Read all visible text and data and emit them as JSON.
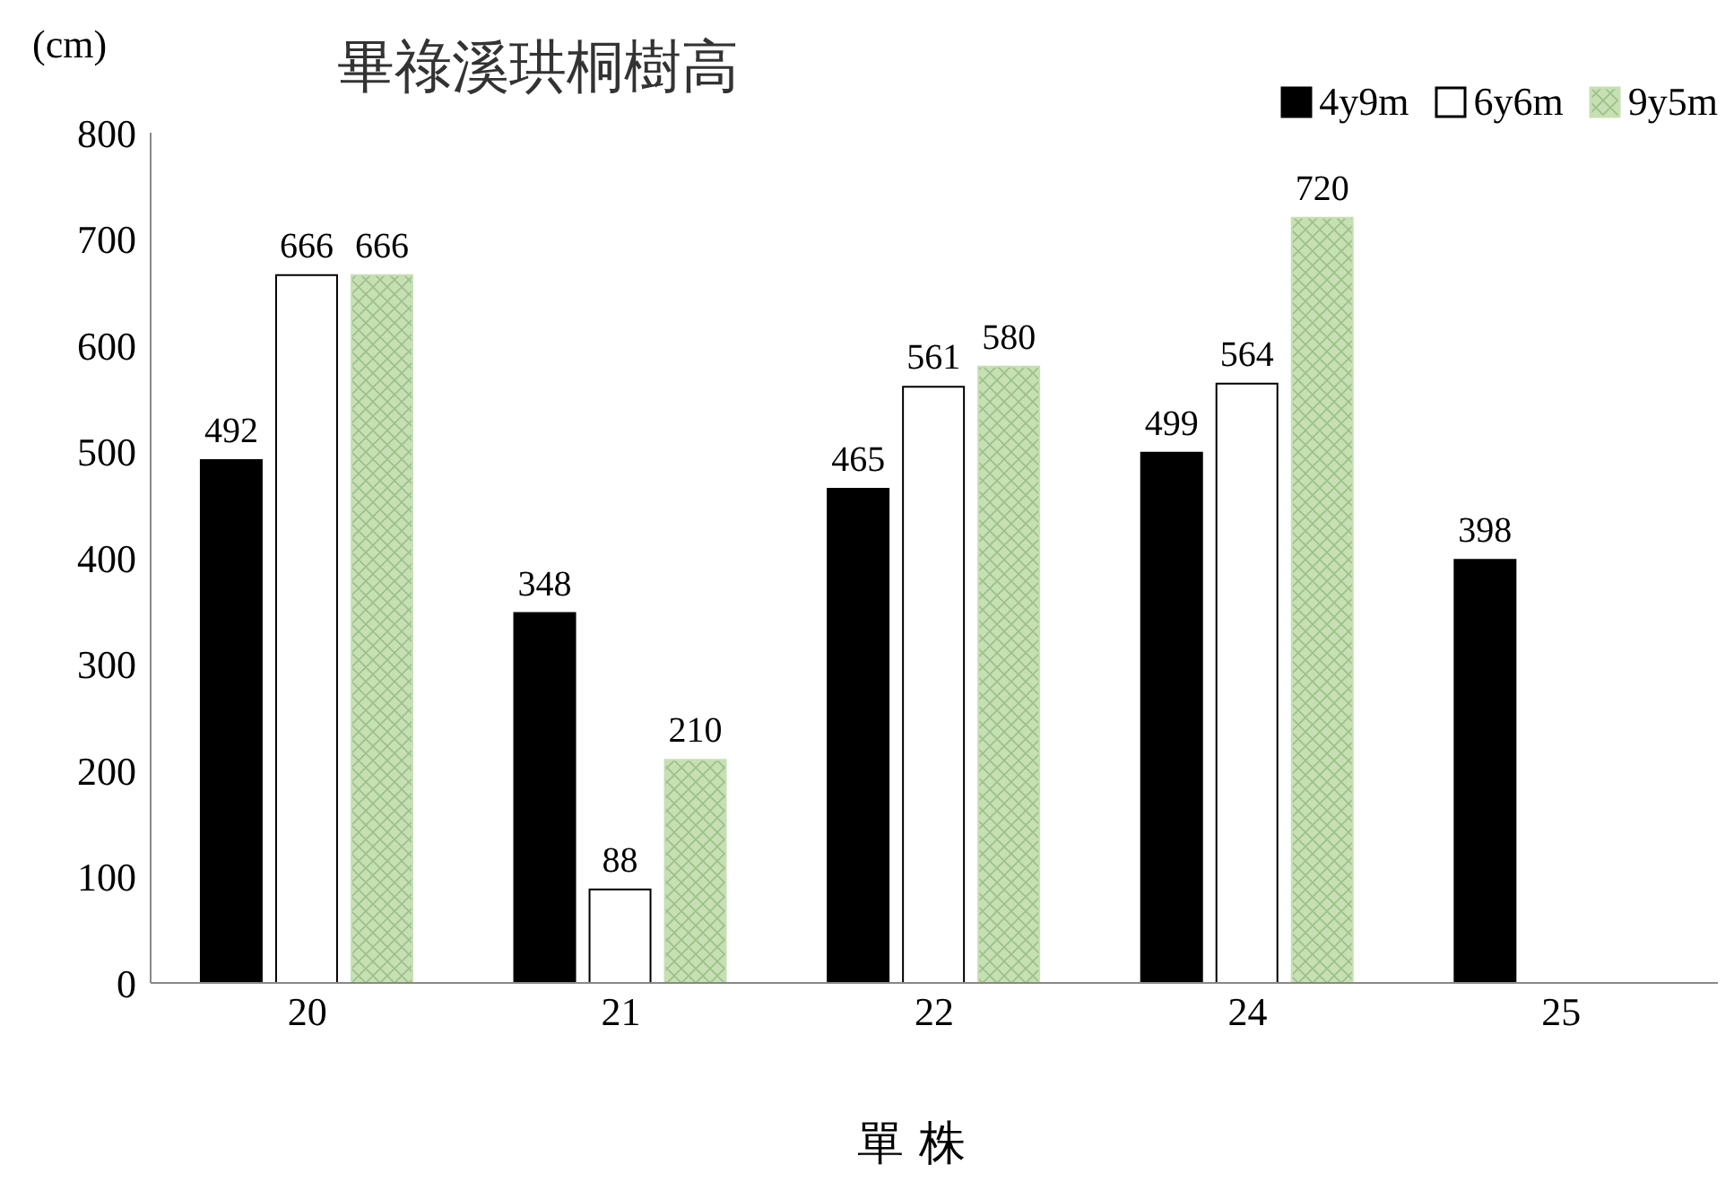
{
  "chart_data": {
    "type": "bar",
    "title": "畢祿溪珙桐樹高",
    "xlabel": "單 株",
    "ylabel": "(cm)",
    "categories": [
      "20",
      "21",
      "22",
      "24",
      "25"
    ],
    "series": [
      {
        "name": "4y9m",
        "color": "#000000",
        "values": [
          492,
          348,
          465,
          499,
          398
        ]
      },
      {
        "name": "6y6m",
        "color": "#ffffff",
        "values": [
          666,
          88,
          561,
          564,
          null
        ]
      },
      {
        "name": "9y5m",
        "color": "#c6e0b4",
        "values": [
          666,
          210,
          580,
          720,
          null
        ]
      }
    ],
    "ylim": [
      0,
      800
    ],
    "yticks": [
      0,
      100,
      200,
      300,
      400,
      500,
      600,
      700,
      800
    ],
    "legend": "top right",
    "data_labels": true
  }
}
